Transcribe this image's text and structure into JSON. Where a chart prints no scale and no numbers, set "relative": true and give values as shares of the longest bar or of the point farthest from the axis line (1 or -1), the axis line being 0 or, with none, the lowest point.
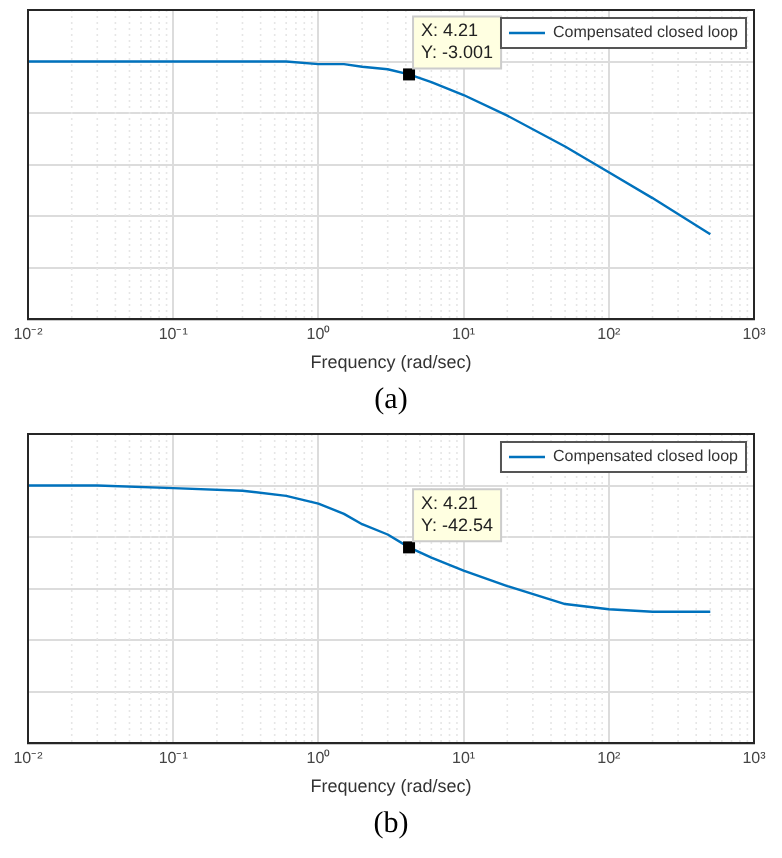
{
  "chart_data": [
    {
      "type": "line",
      "relative": true,
      "xlabel": "Frequency (rad/sec)",
      "log": "x",
      "grid": true,
      "legend": "top right",
      "tick_labels": "x",
      "marker": "none",
      "line_style": "solid",
      "x": [
        0.01,
        0.03,
        0.1,
        0.3,
        0.6,
        1,
        1.5,
        2,
        3,
        4.21,
        6,
        10,
        20,
        50,
        100,
        200,
        500
      ],
      "series": [
        {
          "name": "Compensated closed loop",
          "color": "#0072bd",
          "values": [
            1,
            1,
            1,
            1,
            1,
            0.99,
            0.99,
            0.98,
            0.97,
            0.95,
            0.92,
            0.87,
            0.79,
            0.67,
            0.57,
            0.47,
            0.33
          ]
        }
      ],
      "xlim": [
        0.01,
        1000
      ],
      "xticks": [
        {
          "value": 0.01,
          "label": "10⁻²"
        },
        {
          "value": 0.1,
          "label": "10⁻¹"
        },
        {
          "value": 1,
          "label": "10⁰"
        },
        {
          "value": 10,
          "label": "10¹"
        },
        {
          "value": 100,
          "label": "10²"
        },
        {
          "value": 1000,
          "label": "10³"
        }
      ],
      "annotations": [
        {
          "text": "X: 4.21\nY: -3.001",
          "x": 4.21,
          "y": 0.95
        },
        "(a)"
      ]
    },
    {
      "type": "line",
      "relative": true,
      "xlabel": "Frequency (rad/sec)",
      "log": "x",
      "grid": true,
      "legend": "top right",
      "tick_labels": "x",
      "marker": "none",
      "line_style": "solid",
      "x": [
        0.01,
        0.03,
        0.1,
        0.3,
        0.6,
        1,
        1.5,
        2,
        3,
        4.21,
        6,
        10,
        20,
        50,
        100,
        200,
        500
      ],
      "series": [
        {
          "name": "Compensated closed loop",
          "color": "#0072bd",
          "values": [
            1,
            1,
            0.99,
            0.98,
            0.96,
            0.93,
            0.89,
            0.85,
            0.81,
            0.76,
            0.72,
            0.67,
            0.61,
            0.54,
            0.52,
            0.51,
            0.51
          ]
        }
      ],
      "xlim": [
        0.01,
        1000
      ],
      "xticks": [
        {
          "value": 0.01,
          "label": "10⁻²"
        },
        {
          "value": 0.1,
          "label": "10⁻¹"
        },
        {
          "value": 1,
          "label": "10⁰"
        },
        {
          "value": 10,
          "label": "10¹"
        },
        {
          "value": 100,
          "label": "10²"
        },
        {
          "value": 1000,
          "label": "10³"
        }
      ],
      "annotations": [
        {
          "text": "X: 4.21\nY: -42.54",
          "x": 4.21,
          "y": 0.76
        },
        "(b)"
      ]
    }
  ]
}
